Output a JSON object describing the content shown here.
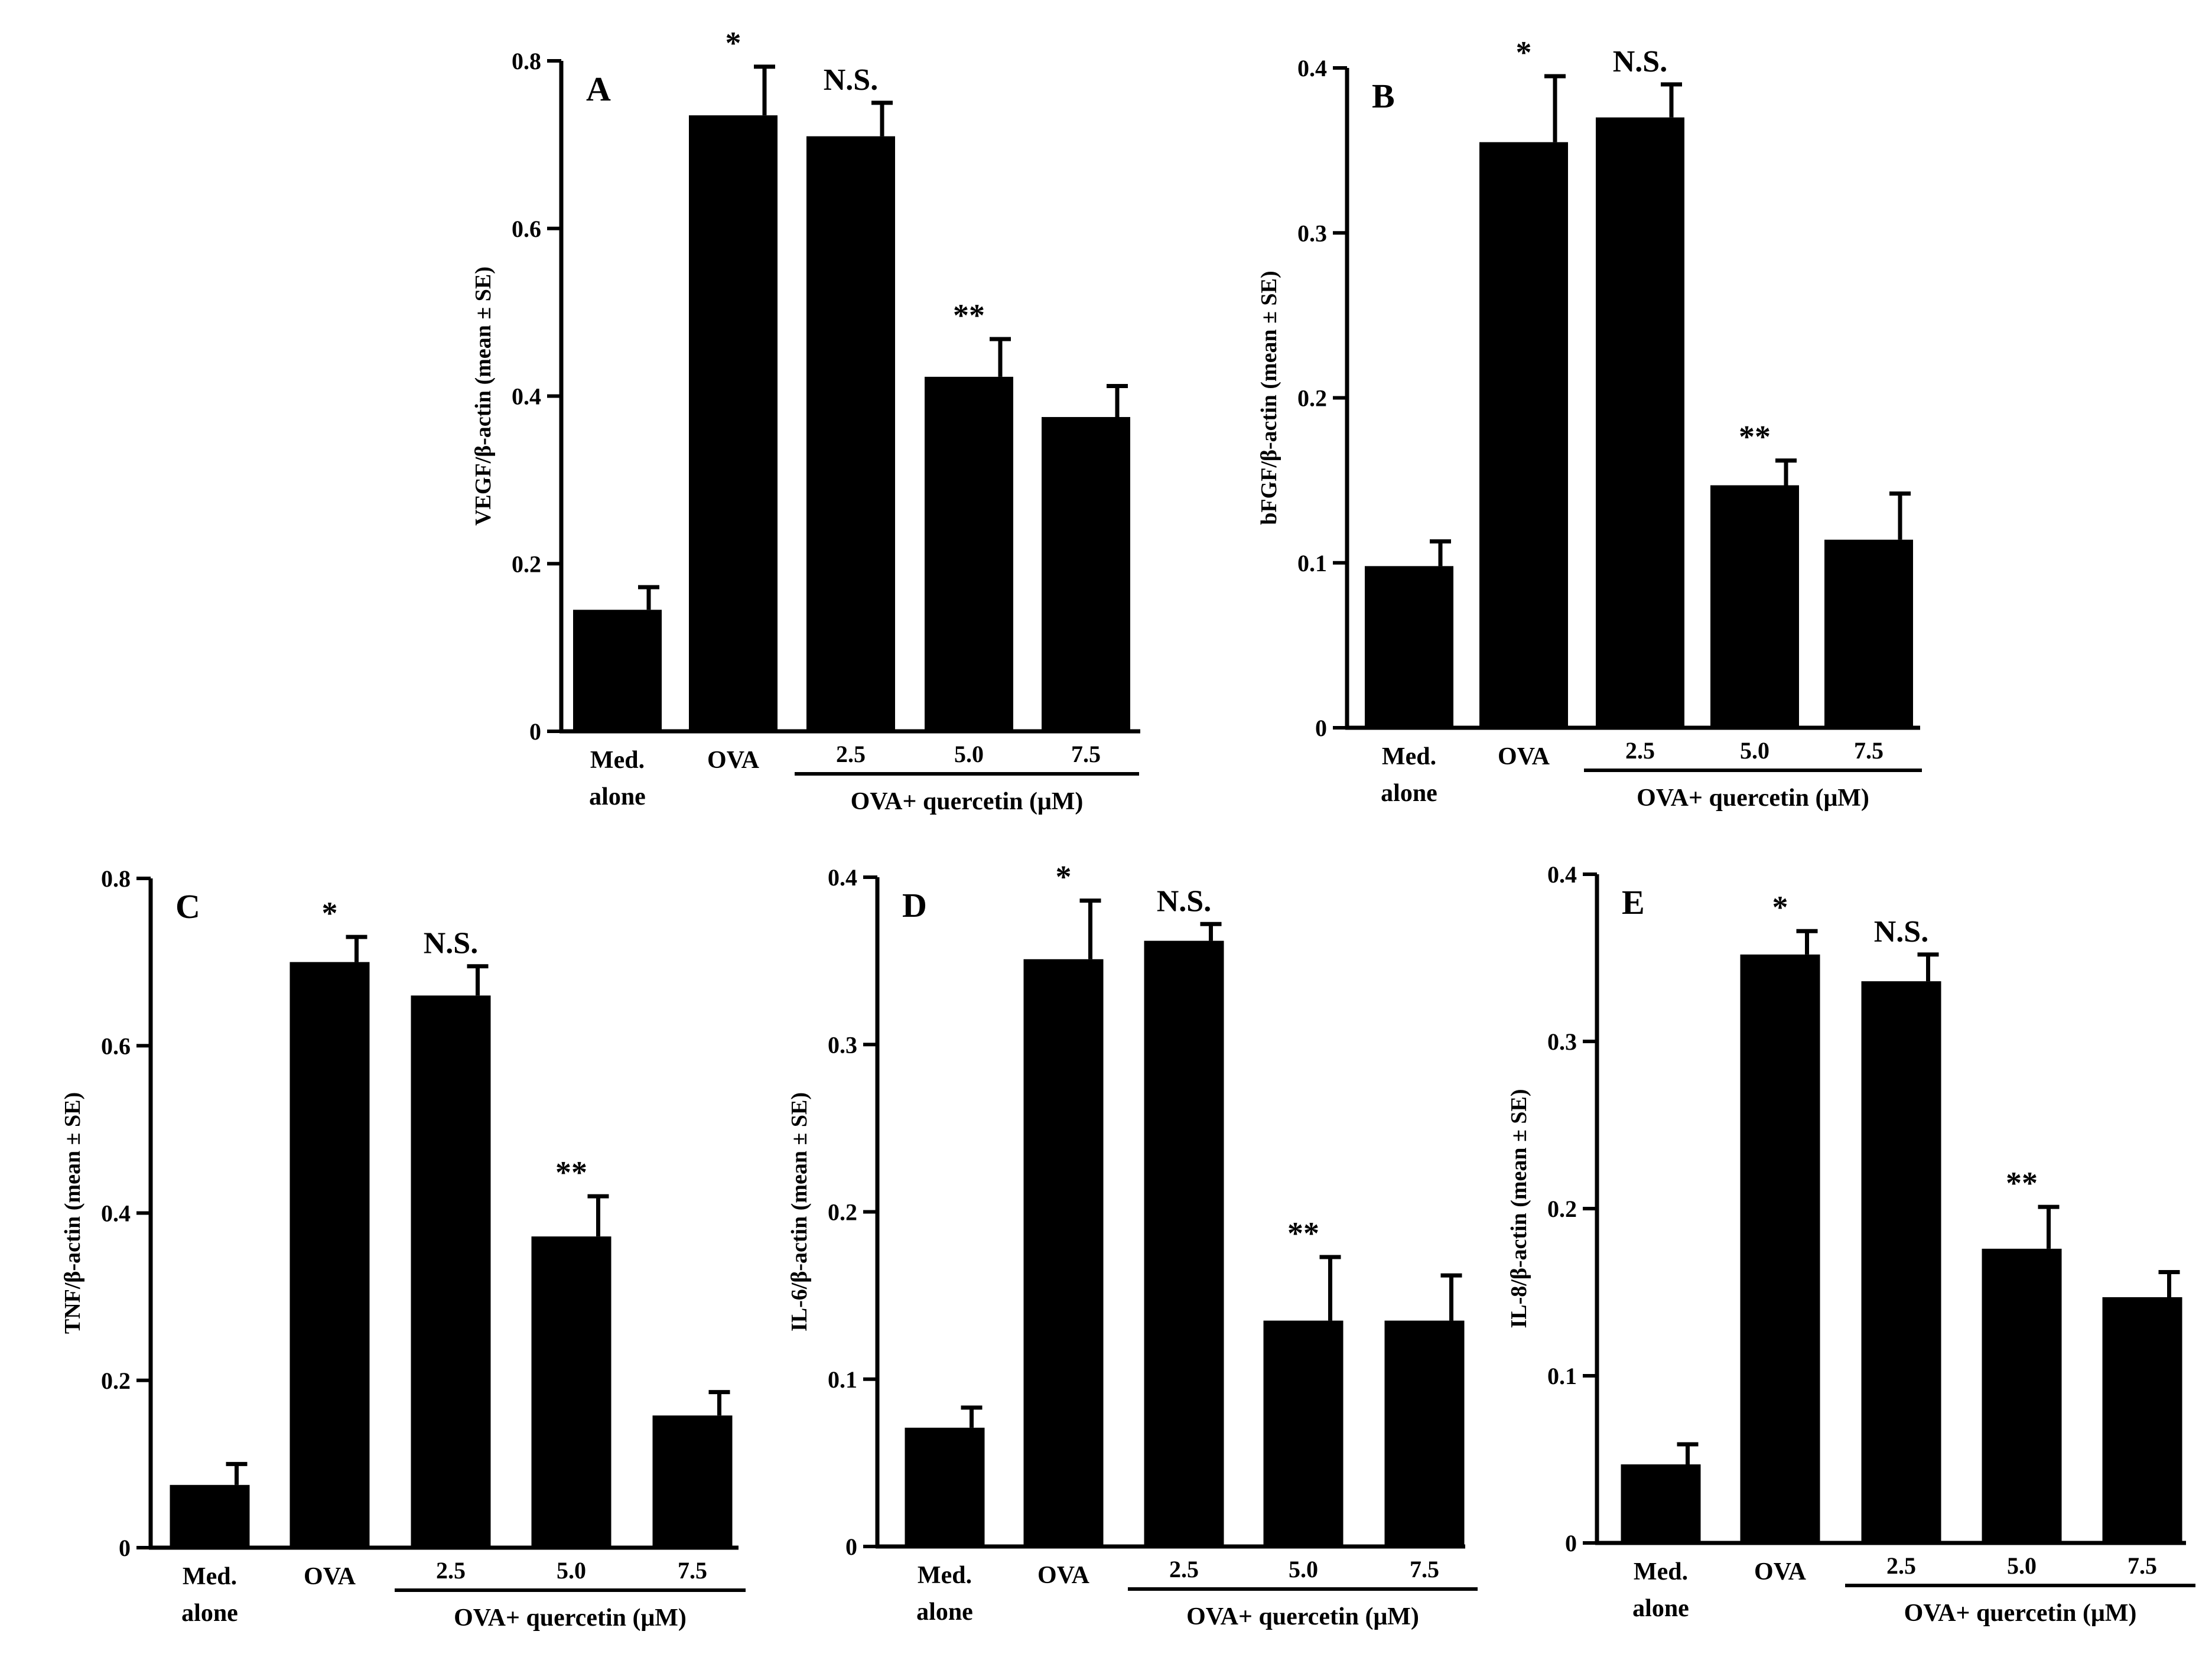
{
  "figure": {
    "group_label": "OVA+ quercetin (μM)",
    "x_labels": {
      "med_line1": "Med.",
      "med_line2": "alone",
      "ova": "OVA",
      "dose_25": "2.5",
      "dose_50": "5.0",
      "dose_75": "7.5"
    }
  },
  "chart_data": [
    {
      "id": "A",
      "type": "bar",
      "panel_label": "A",
      "ylabel": "VEGF/β-actin (mean ± SE)",
      "ylim": [
        0,
        0.8
      ],
      "yticks": [
        0,
        0.2,
        0.4,
        0.6,
        0.8
      ],
      "ytick_labels": [
        "0",
        "0.2",
        "0.4",
        "0.6",
        "0.8"
      ],
      "categories": [
        "Med. alone",
        "OVA",
        "2.5",
        "5.0",
        "7.5"
      ],
      "values": [
        0.145,
        0.735,
        0.71,
        0.423,
        0.375
      ],
      "errors": [
        0.027,
        0.058,
        0.04,
        0.045,
        0.037
      ],
      "annotations": [
        "",
        "*",
        "N.S.",
        "**",
        ""
      ]
    },
    {
      "id": "B",
      "type": "bar",
      "panel_label": "B",
      "ylabel": "bFGF/β-actin (mean ± SE)",
      "ylim": [
        0,
        0.4
      ],
      "yticks": [
        0,
        0.1,
        0.2,
        0.3,
        0.4
      ],
      "ytick_labels": [
        "0",
        "0.1",
        "0.2",
        "0.3",
        "0.4"
      ],
      "categories": [
        "Med. alone",
        "OVA",
        "2.5",
        "5.0",
        "7.5"
      ],
      "values": [
        0.098,
        0.355,
        0.37,
        0.147,
        0.114
      ],
      "errors": [
        0.015,
        0.04,
        0.02,
        0.015,
        0.028
      ],
      "annotations": [
        "",
        "*",
        "N.S.",
        "**",
        ""
      ]
    },
    {
      "id": "C",
      "type": "bar",
      "panel_label": "C",
      "ylabel": "TNF/β-actin (mean ± SE)",
      "ylim": [
        0,
        0.8
      ],
      "yticks": [
        0,
        0.2,
        0.4,
        0.6,
        0.8
      ],
      "ytick_labels": [
        "0",
        "0.2",
        "0.4",
        "0.6",
        "0.8"
      ],
      "categories": [
        "Med. alone",
        "OVA",
        "2.5",
        "5.0",
        "7.5"
      ],
      "values": [
        0.075,
        0.7,
        0.66,
        0.372,
        0.158
      ],
      "errors": [
        0.025,
        0.03,
        0.035,
        0.048,
        0.028
      ],
      "annotations": [
        "",
        "*",
        "N.S.",
        "**",
        ""
      ]
    },
    {
      "id": "D",
      "type": "bar",
      "panel_label": "D",
      "ylabel": "IL-6/β-actin (mean ± SE)",
      "ylim": [
        0,
        0.4
      ],
      "yticks": [
        0,
        0.1,
        0.2,
        0.3,
        0.4
      ],
      "ytick_labels": [
        "0",
        "0.1",
        "0.2",
        "0.3",
        "0.4"
      ],
      "categories": [
        "Med. alone",
        "OVA",
        "2.5",
        "5.0",
        "7.5"
      ],
      "values": [
        0.071,
        0.351,
        0.362,
        0.135,
        0.135
      ],
      "errors": [
        0.012,
        0.035,
        0.01,
        0.038,
        0.027
      ],
      "annotations": [
        "",
        "*",
        "N.S.",
        "**",
        ""
      ]
    },
    {
      "id": "E",
      "type": "bar",
      "panel_label": "E",
      "ylabel": "IL-8/β-actin (mean ± SE)",
      "ylim": [
        0,
        0.4
      ],
      "yticks": [
        0,
        0.1,
        0.2,
        0.3,
        0.4
      ],
      "ytick_labels": [
        "0",
        "0.1",
        "0.2",
        "0.3",
        "0.4"
      ],
      "categories": [
        "Med. alone",
        "OVA",
        "2.5",
        "5.0",
        "7.5"
      ],
      "values": [
        0.047,
        0.352,
        0.336,
        0.176,
        0.147
      ],
      "errors": [
        0.012,
        0.014,
        0.016,
        0.025,
        0.015
      ],
      "annotations": [
        "",
        "*",
        "N.S.",
        "**",
        ""
      ]
    }
  ]
}
